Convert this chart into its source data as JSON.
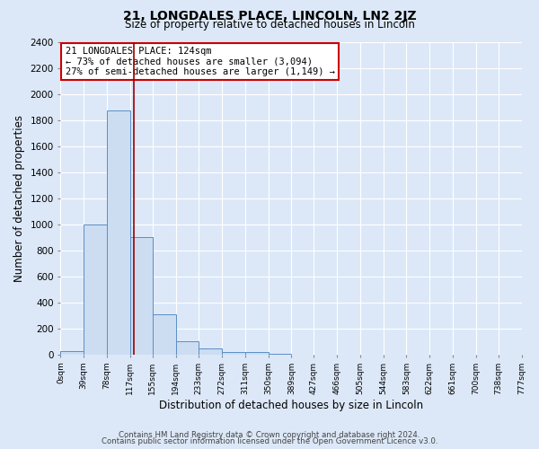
{
  "title": "21, LONGDALES PLACE, LINCOLN, LN2 2JZ",
  "subtitle": "Size of property relative to detached houses in Lincoln",
  "xlabel": "Distribution of detached houses by size in Lincoln",
  "ylabel": "Number of detached properties",
  "bin_edges": [
    0,
    39,
    78,
    117,
    155,
    194,
    233,
    272,
    311,
    350,
    389,
    427,
    466,
    505,
    544,
    583,
    622,
    661,
    700,
    738,
    777
  ],
  "bin_counts": [
    25,
    1000,
    1870,
    900,
    310,
    100,
    45,
    20,
    20,
    5,
    0,
    0,
    0,
    0,
    0,
    0,
    0,
    0,
    0,
    0
  ],
  "property_value": 124,
  "bar_facecolor": "#ccddf2",
  "bar_edgecolor": "#5b8ec4",
  "vline_color": "#990000",
  "background_color": "#dce8f8",
  "grid_color": "#ffffff",
  "ylim": [
    0,
    2400
  ],
  "yticks": [
    0,
    200,
    400,
    600,
    800,
    1000,
    1200,
    1400,
    1600,
    1800,
    2000,
    2200,
    2400
  ],
  "tick_labels": [
    "0sqm",
    "39sqm",
    "78sqm",
    "117sqm",
    "155sqm",
    "194sqm",
    "233sqm",
    "272sqm",
    "311sqm",
    "350sqm",
    "389sqm",
    "427sqm",
    "466sqm",
    "505sqm",
    "544sqm",
    "583sqm",
    "622sqm",
    "661sqm",
    "700sqm",
    "738sqm",
    "777sqm"
  ],
  "annotation_title": "21 LONGDALES PLACE: 124sqm",
  "annotation_line1": "← 73% of detached houses are smaller (3,094)",
  "annotation_line2": "27% of semi-detached houses are larger (1,149) →",
  "footer_line1": "Contains HM Land Registry data © Crown copyright and database right 2024.",
  "footer_line2": "Contains public sector information licensed under the Open Government Licence v3.0."
}
